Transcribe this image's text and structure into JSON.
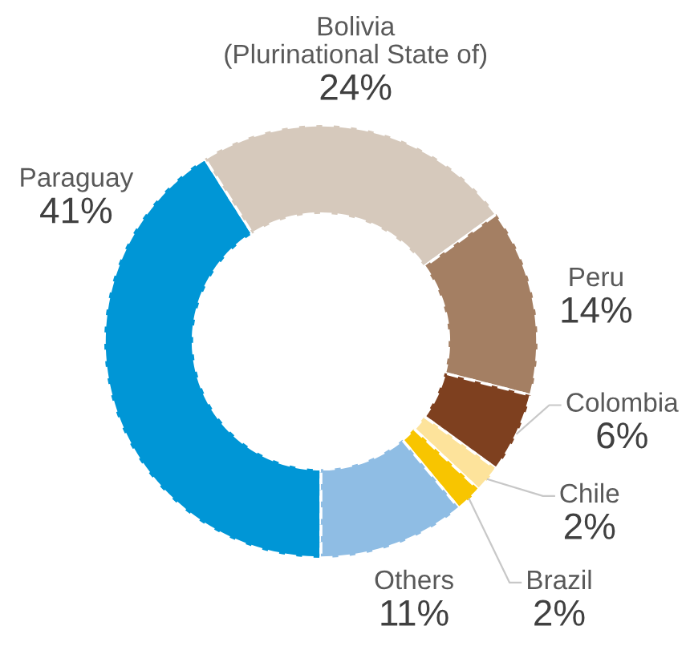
{
  "chart_data": {
    "type": "donut",
    "categories": [
      "Paraguay",
      "Bolivia\n(Plurinational State of)",
      "Peru",
      "Colombia",
      "Chile",
      "Brazil",
      "Others"
    ],
    "values": [
      41,
      24,
      14,
      6,
      2,
      2,
      11
    ],
    "colors": [
      "#0096d6",
      "#d6c9bc",
      "#a47f63",
      "#7e401f",
      "#fde39b",
      "#f8c500",
      "#8fbde4"
    ],
    "value_labels": [
      "41%",
      "24%",
      "14%",
      "6%",
      "2%",
      "2%",
      "11%"
    ]
  }
}
